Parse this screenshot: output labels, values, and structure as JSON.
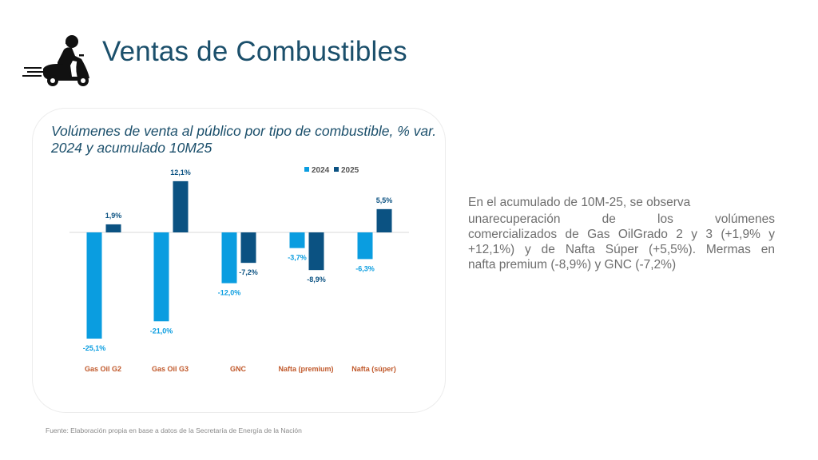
{
  "header": {
    "title": "Ventas de Combustibles",
    "logo_icon": "scooter-delivery-icon"
  },
  "colors": {
    "title": "#1b4f6b",
    "series_2024": "#0a9de0",
    "series_2025": "#0b5282",
    "category_label": "#c0582a",
    "baseline": "#d9d9d9",
    "commentary_text": "#6e6e6e"
  },
  "chart_data": {
    "type": "bar",
    "title": "Volúmenes de venta al público por tipo de combustible, % var. 2024 y acumulado 10M25",
    "categories": [
      "Gas Oil G2",
      "Gas Oil G3",
      "GNC",
      "Nafta (premium)",
      "Nafta (súper)"
    ],
    "series": [
      {
        "name": "2024",
        "values": [
          -25.1,
          -21.0,
          -12.0,
          -3.7,
          -6.3
        ],
        "labels": [
          "-25,1%",
          "-21,0%",
          "-12,0%",
          "-3,7%",
          "-6,3%"
        ]
      },
      {
        "name": "2025",
        "values": [
          1.9,
          12.1,
          -7.2,
          -8.9,
          5.5
        ],
        "labels": [
          "1,9%",
          "12,1%",
          "-7,2%",
          "-8,9%",
          "5,5%"
        ]
      }
    ],
    "xlabel": "",
    "ylabel": "",
    "ylim": [
      -28,
      14
    ],
    "grid": false,
    "legend": "top-right",
    "units": "%"
  },
  "commentary": {
    "line1": "En el acumulado de 10M-25, se observa",
    "line2_words": [
      "unarecuperación",
      "de",
      "los",
      "volúmenes"
    ],
    "rest": "comercializados de Gas OilGrado 2 y 3 (+1,9% y +12,1%) y de Nafta Súper (+5,5%). Mermas en",
    "last": "nafta premium (-8,9%) y GNC (-7,2%)"
  },
  "footer": {
    "source": "Fuente: Elaboración propia en base a datos de la Secretaría de Energía de la Nación"
  }
}
